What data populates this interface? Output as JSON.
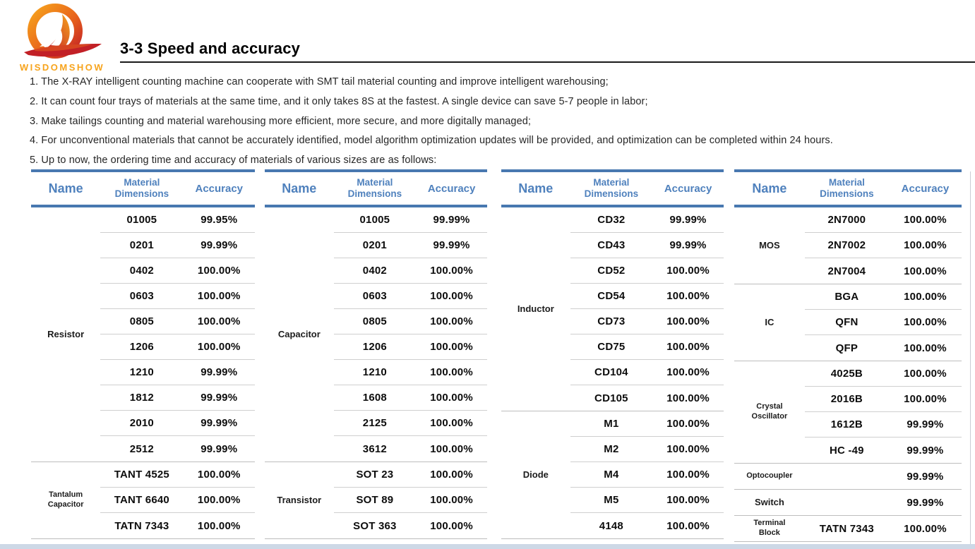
{
  "logo": {
    "brand": "WISDOMSHOW",
    "colors": {
      "orange": "#F7A41D",
      "red": "#C22026"
    }
  },
  "header": {
    "title": "3-3 Speed and accuracy"
  },
  "bullets": [
    "1. The X-RAY intelligent counting machine can cooperate with SMT tail material counting and improve intelligent warehousing;",
    "2. It can count four trays of materials at the same time, and it only takes 8S at the fastest. A single device can save 5-7 people in labor;",
    "3. Make tailings counting and material warehousing more efficient, more secure, and more digitally managed;",
    "4. For unconventional materials that cannot be accurately identified, model algorithm optimization updates will be provided, and optimization can be completed within 24 hours.",
    "5. Up to now, the ordering time and accuracy of materials of various sizes are as follows:"
  ],
  "colors": {
    "header_blue": "#4F81BD",
    "thick_line_blue": "#4878B0",
    "separator_gray": "#CFCFCF",
    "group_separator_gray": "#BDBDBD",
    "bottom_bar_blue": "#CDD8E6"
  },
  "tables": [
    {
      "headers": [
        "Name",
        "Material Dimensions",
        "Accuracy"
      ],
      "groups": [
        {
          "name": "Resistor",
          "rows": [
            [
              "01005",
              "99.95%"
            ],
            [
              "0201",
              "99.99%"
            ],
            [
              "0402",
              "100.00%"
            ],
            [
              "0603",
              "100.00%"
            ],
            [
              "0805",
              "100.00%"
            ],
            [
              "1206",
              "100.00%"
            ],
            [
              "1210",
              "99.99%"
            ],
            [
              "1812",
              "99.99%"
            ],
            [
              "2010",
              "99.99%"
            ],
            [
              "2512",
              "99.99%"
            ]
          ]
        },
        {
          "name": "Tantalum Capacitor",
          "rows": [
            [
              "TANT 4525",
              "100.00%"
            ],
            [
              "TANT 6640",
              "100.00%"
            ],
            [
              "TATN 7343",
              "100.00%"
            ]
          ]
        }
      ]
    },
    {
      "headers": [
        "Name",
        "Material Dimensions",
        "Accuracy"
      ],
      "groups": [
        {
          "name": "Capacitor",
          "rows": [
            [
              "01005",
              "99.99%"
            ],
            [
              "0201",
              "99.99%"
            ],
            [
              "0402",
              "100.00%"
            ],
            [
              "0603",
              "100.00%"
            ],
            [
              "0805",
              "100.00%"
            ],
            [
              "1206",
              "100.00%"
            ],
            [
              "1210",
              "100.00%"
            ],
            [
              "1608",
              "100.00%"
            ],
            [
              "2125",
              "100.00%"
            ],
            [
              "3612",
              "100.00%"
            ]
          ]
        },
        {
          "name": "Transistor",
          "rows": [
            [
              "SOT 23",
              "100.00%"
            ],
            [
              "SOT 89",
              "100.00%"
            ],
            [
              "SOT 363",
              "100.00%"
            ]
          ]
        }
      ]
    },
    {
      "headers": [
        "Name",
        "Material Dimensions",
        "Accuracy"
      ],
      "groups": [
        {
          "name": "Inductor",
          "rows": [
            [
              "CD32",
              "99.99%"
            ],
            [
              "CD43",
              "99.99%"
            ],
            [
              "CD52",
              "100.00%"
            ],
            [
              "CD54",
              "100.00%"
            ],
            [
              "CD73",
              "100.00%"
            ],
            [
              "CD75",
              "100.00%"
            ],
            [
              "CD104",
              "100.00%"
            ],
            [
              "CD105",
              "100.00%"
            ]
          ]
        },
        {
          "name": "Diode",
          "rows": [
            [
              "M1",
              "100.00%"
            ],
            [
              "M2",
              "100.00%"
            ],
            [
              "M4",
              "100.00%"
            ],
            [
              "M5",
              "100.00%"
            ],
            [
              "4148",
              "100.00%"
            ]
          ]
        }
      ]
    },
    {
      "headers": [
        "Name",
        "Material Dimensions",
        "Accuracy"
      ],
      "groups": [
        {
          "name": "MOS",
          "rows": [
            [
              "2N7000",
              "100.00%"
            ],
            [
              "2N7002",
              "100.00%"
            ],
            [
              "2N7004",
              "100.00%"
            ]
          ]
        },
        {
          "name": "IC",
          "rows": [
            [
              "BGA",
              "100.00%"
            ],
            [
              "QFN",
              "100.00%"
            ],
            [
              "QFP",
              "100.00%"
            ]
          ]
        },
        {
          "name": "Crystal Oscillator",
          "rows": [
            [
              "4025B",
              "100.00%"
            ],
            [
              "2016B",
              "100.00%"
            ],
            [
              "1612B",
              "99.99%"
            ],
            [
              "HC -49",
              "99.99%"
            ]
          ]
        },
        {
          "name": "Optocoupler",
          "rows": [
            [
              "",
              "99.99%"
            ]
          ]
        },
        {
          "name": "Switch",
          "rows": [
            [
              "",
              "99.99%"
            ]
          ]
        },
        {
          "name": "Terminal Block",
          "rows": [
            [
              "TATN 7343",
              "100.00%"
            ]
          ]
        }
      ]
    }
  ]
}
